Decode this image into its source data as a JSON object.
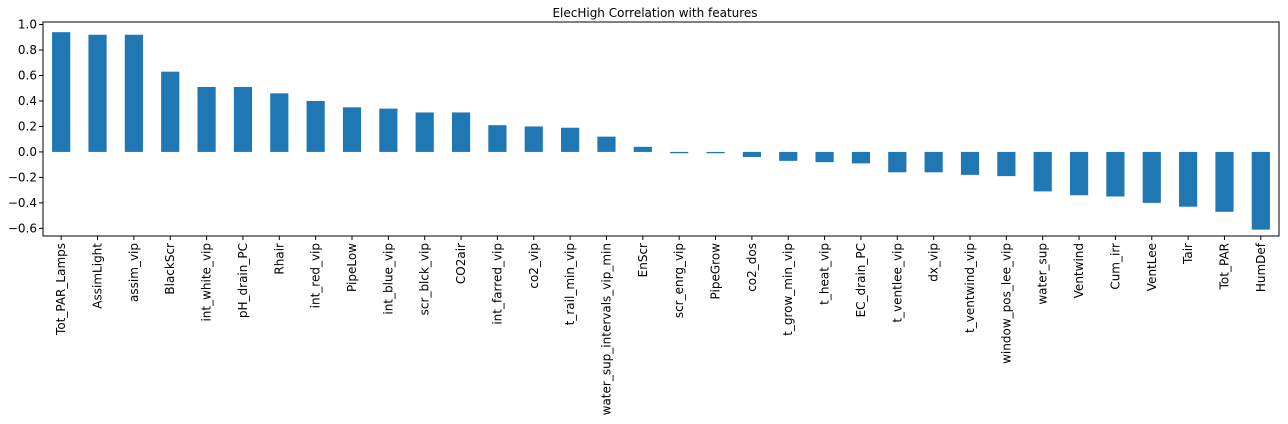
{
  "chart_data": {
    "type": "bar",
    "title": "ElecHigh Correlation with features",
    "xlabel": "",
    "ylabel": "",
    "ylim": [
      -0.66,
      1.02
    ],
    "yticks": [
      -0.6,
      -0.4,
      -0.2,
      0.0,
      0.2,
      0.4,
      0.6,
      0.8,
      1.0
    ],
    "ytick_labels": [
      "−0.6",
      "−0.4",
      "−0.2",
      "0.0",
      "0.2",
      "0.4",
      "0.6",
      "0.8",
      "1.0"
    ],
    "grid": false,
    "bar_color": "#1f77b4",
    "categories": [
      "Tot_PAR_Lamps",
      "AssimLight",
      "assim_vip",
      "BlackScr",
      "int_white_vip",
      "pH_drain_PC",
      "Rhair",
      "int_red_vip",
      "PipeLow",
      "int_blue_vip",
      "scr_blck_vip",
      "CO2air",
      "int_farred_vip",
      "co2_vip",
      "t_rail_min_vip",
      "water_sup_intervals_vip_min",
      "EnScr",
      "scr_enrg_vip",
      "PipeGrow",
      "co2_dos",
      "t_grow_min_vip",
      "t_heat_vip",
      "EC_drain_PC",
      "t_ventlee_vip",
      "dx_vip",
      "t_ventwind_vip",
      "window_pos_lee_vip",
      "water_sup",
      "Ventwind",
      "Cum_irr",
      "VentLee",
      "Tair",
      "Tot_PAR",
      "HumDef"
    ],
    "values": [
      0.94,
      0.92,
      0.92,
      0.63,
      0.51,
      0.51,
      0.46,
      0.4,
      0.35,
      0.34,
      0.31,
      0.31,
      0.21,
      0.2,
      0.19,
      0.12,
      0.04,
      -0.01,
      -0.01,
      -0.04,
      -0.07,
      -0.08,
      -0.09,
      -0.16,
      -0.16,
      -0.18,
      -0.19,
      -0.31,
      -0.34,
      -0.35,
      -0.4,
      -0.43,
      -0.47,
      -0.61
    ]
  }
}
